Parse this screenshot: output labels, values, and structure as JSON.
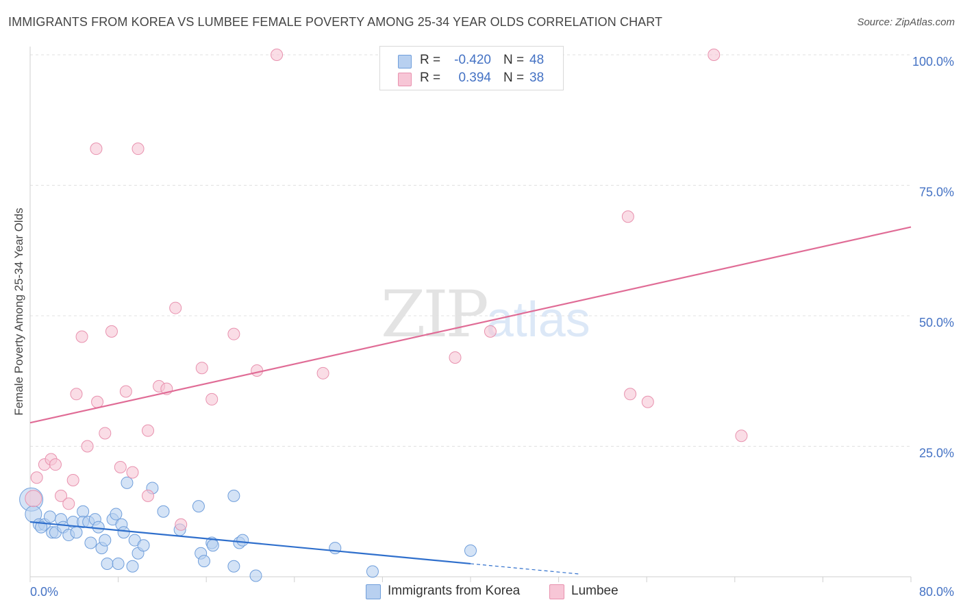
{
  "title": "IMMIGRANTS FROM KOREA VS LUMBEE FEMALE POVERTY AMONG 25-34 YEAR OLDS CORRELATION CHART",
  "source": "Source: ZipAtlas.com",
  "watermark": {
    "zip": "ZIP",
    "atlas": "atlas"
  },
  "legend": {
    "rows": [
      {
        "r_label": "R =",
        "r_value": "-0.420",
        "n_label": "N =",
        "n_value": "48"
      },
      {
        "r_label": "R =",
        "r_value": "0.394",
        "n_label": "N =",
        "n_value": "38"
      }
    ]
  },
  "bottom_legend": {
    "korea": "Immigrants from Korea",
    "lumbee": "Lumbee"
  },
  "colors": {
    "korea_fill": "#b8d0f0",
    "korea_stroke": "#6f9edb",
    "korea_line": "#2f6fcc",
    "lumbee_fill": "#f7c6d6",
    "lumbee_stroke": "#e891ae",
    "lumbee_line": "#e06c96",
    "grid": "#e0e0e0",
    "axis_text": "#4472c4"
  },
  "chart_data": {
    "type": "scatter",
    "title": "IMMIGRANTS FROM KOREA VS LUMBEE FEMALE POVERTY AMONG 25-34 YEAR OLDS CORRELATION CHART",
    "xlabel": "",
    "ylabel": "Female Poverty Among 25-34 Year Olds",
    "xlim": [
      0,
      80
    ],
    "ylim": [
      0,
      100
    ],
    "x_tick_labels": [
      "0.0%",
      "80.0%"
    ],
    "y_ticks": [
      25,
      50,
      75,
      100
    ],
    "y_tick_labels": [
      "25.0%",
      "50.0%",
      "75.0%",
      "100.0%"
    ],
    "grid": true,
    "series": [
      {
        "name": "Immigrants from Korea",
        "points": [
          [
            0.1,
            14.8,
            3
          ],
          [
            0.3,
            12.0,
            2
          ],
          [
            0.8,
            10.0,
            1
          ],
          [
            1.3,
            10.0,
            1
          ],
          [
            1.8,
            11.5,
            1
          ],
          [
            2.0,
            8.5,
            1
          ],
          [
            2.3,
            8.5,
            1
          ],
          [
            2.8,
            11.0,
            1
          ],
          [
            3.0,
            9.5,
            1
          ],
          [
            3.5,
            8.0,
            1
          ],
          [
            3.9,
            10.5,
            1
          ],
          [
            4.2,
            8.5,
            1
          ],
          [
            4.8,
            12.5,
            1
          ],
          [
            4.8,
            10.5,
            1
          ],
          [
            5.3,
            10.5,
            1
          ],
          [
            5.5,
            6.5,
            1
          ],
          [
            5.9,
            11.0,
            1
          ],
          [
            6.2,
            9.5,
            1
          ],
          [
            6.5,
            5.5,
            1
          ],
          [
            6.8,
            7.0,
            1
          ],
          [
            7.0,
            2.5,
            1
          ],
          [
            7.5,
            11.0,
            1
          ],
          [
            7.8,
            12.0,
            1
          ],
          [
            8.0,
            2.5,
            1
          ],
          [
            8.3,
            10.0,
            1
          ],
          [
            8.5,
            8.5,
            1
          ],
          [
            8.8,
            18.0,
            1
          ],
          [
            9.3,
            2.0,
            1
          ],
          [
            9.5,
            7.0,
            1
          ],
          [
            9.8,
            4.5,
            1
          ],
          [
            10.3,
            6.0,
            1
          ],
          [
            11.1,
            17.0,
            1
          ],
          [
            12.1,
            12.5,
            1
          ],
          [
            13.6,
            9.0,
            1
          ],
          [
            15.3,
            13.5,
            1
          ],
          [
            15.5,
            4.5,
            1
          ],
          [
            15.8,
            3.0,
            1
          ],
          [
            16.5,
            6.5,
            1
          ],
          [
            16.6,
            6.0,
            1
          ],
          [
            18.5,
            15.5,
            1
          ],
          [
            18.5,
            2.0,
            1
          ],
          [
            19.0,
            6.5,
            1
          ],
          [
            19.3,
            7.0,
            1
          ],
          [
            20.5,
            0.2,
            1
          ],
          [
            27.7,
            5.5,
            1
          ],
          [
            31.1,
            1.0,
            1
          ],
          [
            40.0,
            5.0,
            1
          ],
          [
            1.0,
            9.5,
            1
          ]
        ],
        "trend": {
          "x": [
            0,
            40
          ],
          "y": [
            10.5,
            2.5
          ],
          "dash_x": [
            40,
            50
          ],
          "dash_y": [
            2.5,
            0.5
          ]
        }
      },
      {
        "name": "Lumbee",
        "points": [
          [
            0.3,
            15.0,
            2
          ],
          [
            0.6,
            19.0,
            1
          ],
          [
            1.3,
            21.5,
            1
          ],
          [
            1.9,
            22.5,
            1
          ],
          [
            2.3,
            21.5,
            1
          ],
          [
            2.8,
            15.5,
            1
          ],
          [
            3.5,
            14.0,
            1
          ],
          [
            3.9,
            18.5,
            1
          ],
          [
            4.2,
            35.0,
            1
          ],
          [
            4.7,
            46.0,
            1
          ],
          [
            5.2,
            25.0,
            1
          ],
          [
            6.0,
            82.0,
            1
          ],
          [
            6.1,
            33.5,
            1
          ],
          [
            6.8,
            27.5,
            1
          ],
          [
            7.4,
            47.0,
            1
          ],
          [
            8.2,
            21.0,
            1
          ],
          [
            8.7,
            35.5,
            1
          ],
          [
            9.3,
            20.0,
            1
          ],
          [
            9.8,
            82.0,
            1
          ],
          [
            10.7,
            15.5,
            1
          ],
          [
            10.7,
            28.0,
            1
          ],
          [
            11.7,
            36.5,
            1
          ],
          [
            12.4,
            36.0,
            1
          ],
          [
            13.2,
            51.5,
            1
          ],
          [
            13.7,
            10.0,
            1
          ],
          [
            15.6,
            40.0,
            1
          ],
          [
            16.5,
            34.0,
            1
          ],
          [
            18.5,
            46.5,
            1
          ],
          [
            20.6,
            39.5,
            1
          ],
          [
            22.4,
            100.0,
            1
          ],
          [
            26.6,
            39.0,
            1
          ],
          [
            38.6,
            42.0,
            1
          ],
          [
            41.8,
            47.0,
            1
          ],
          [
            54.3,
            69.0,
            1
          ],
          [
            54.5,
            35.0,
            1
          ],
          [
            56.1,
            33.5,
            1
          ],
          [
            62.1,
            100.0,
            1
          ],
          [
            64.6,
            27.0,
            1
          ]
        ],
        "trend": {
          "x": [
            0,
            80
          ],
          "y": [
            29.5,
            67.0
          ]
        }
      }
    ]
  }
}
